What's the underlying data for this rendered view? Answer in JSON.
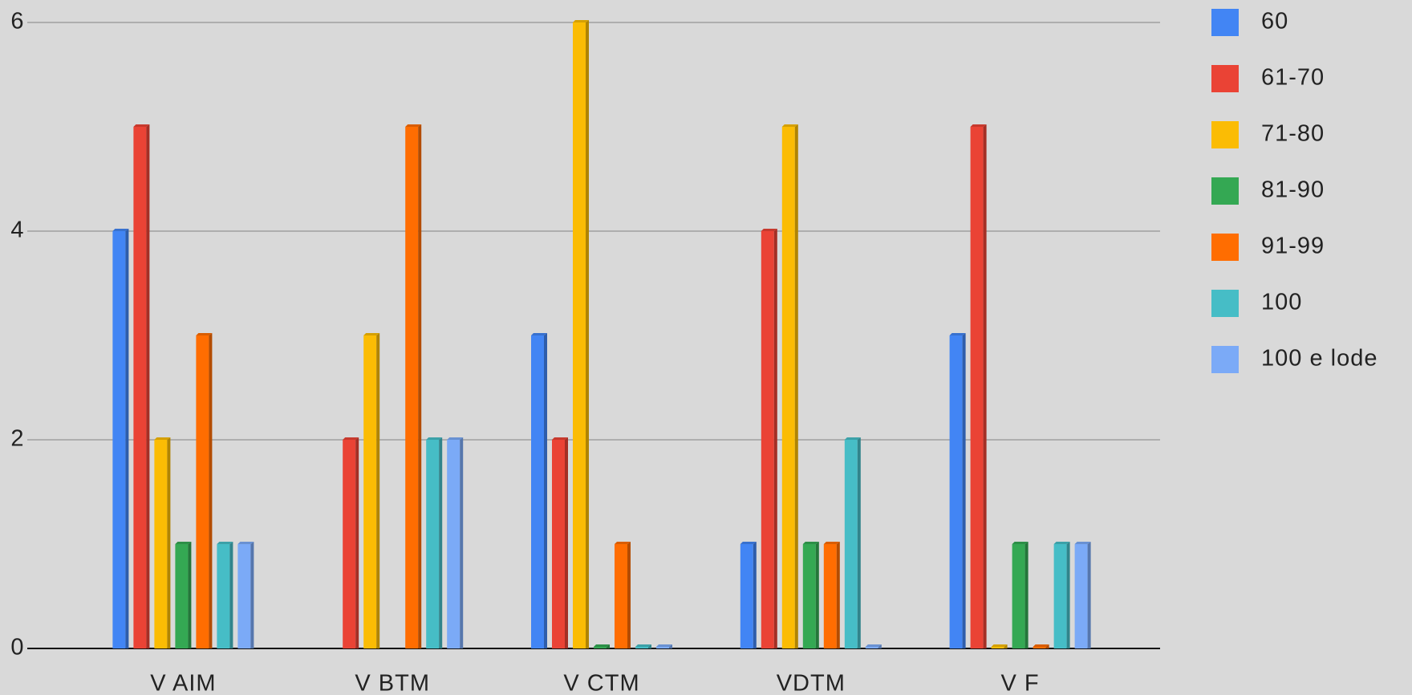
{
  "chart_data": {
    "type": "bar",
    "categories": [
      "V AIM",
      "V BTM",
      "V CTM",
      "VDTM",
      "V F"
    ],
    "series": [
      {
        "name": "60",
        "color": "#4285f4",
        "values": [
          4,
          null,
          3,
          1,
          3
        ]
      },
      {
        "name": "61-70",
        "color": "#ea4335",
        "values": [
          5,
          2,
          2,
          4,
          5
        ]
      },
      {
        "name": "71-80",
        "color": "#fbbc04",
        "values": [
          2,
          3,
          6,
          5,
          0
        ]
      },
      {
        "name": "81-90",
        "color": "#34a853",
        "values": [
          1,
          null,
          0,
          1,
          1
        ]
      },
      {
        "name": "91-99",
        "color": "#ff6d01",
        "values": [
          3,
          5,
          1,
          1,
          0
        ]
      },
      {
        "name": "100",
        "color": "#46bdc6",
        "values": [
          1,
          2,
          0,
          2,
          1
        ]
      },
      {
        "name": "100 e lode",
        "color": "#7baaf7",
        "values": [
          1,
          2,
          0,
          0,
          1
        ]
      }
    ],
    "ylim": [
      0,
      6
    ],
    "yticks": [
      0,
      2,
      4,
      6
    ],
    "grid": true,
    "legend": "right"
  }
}
